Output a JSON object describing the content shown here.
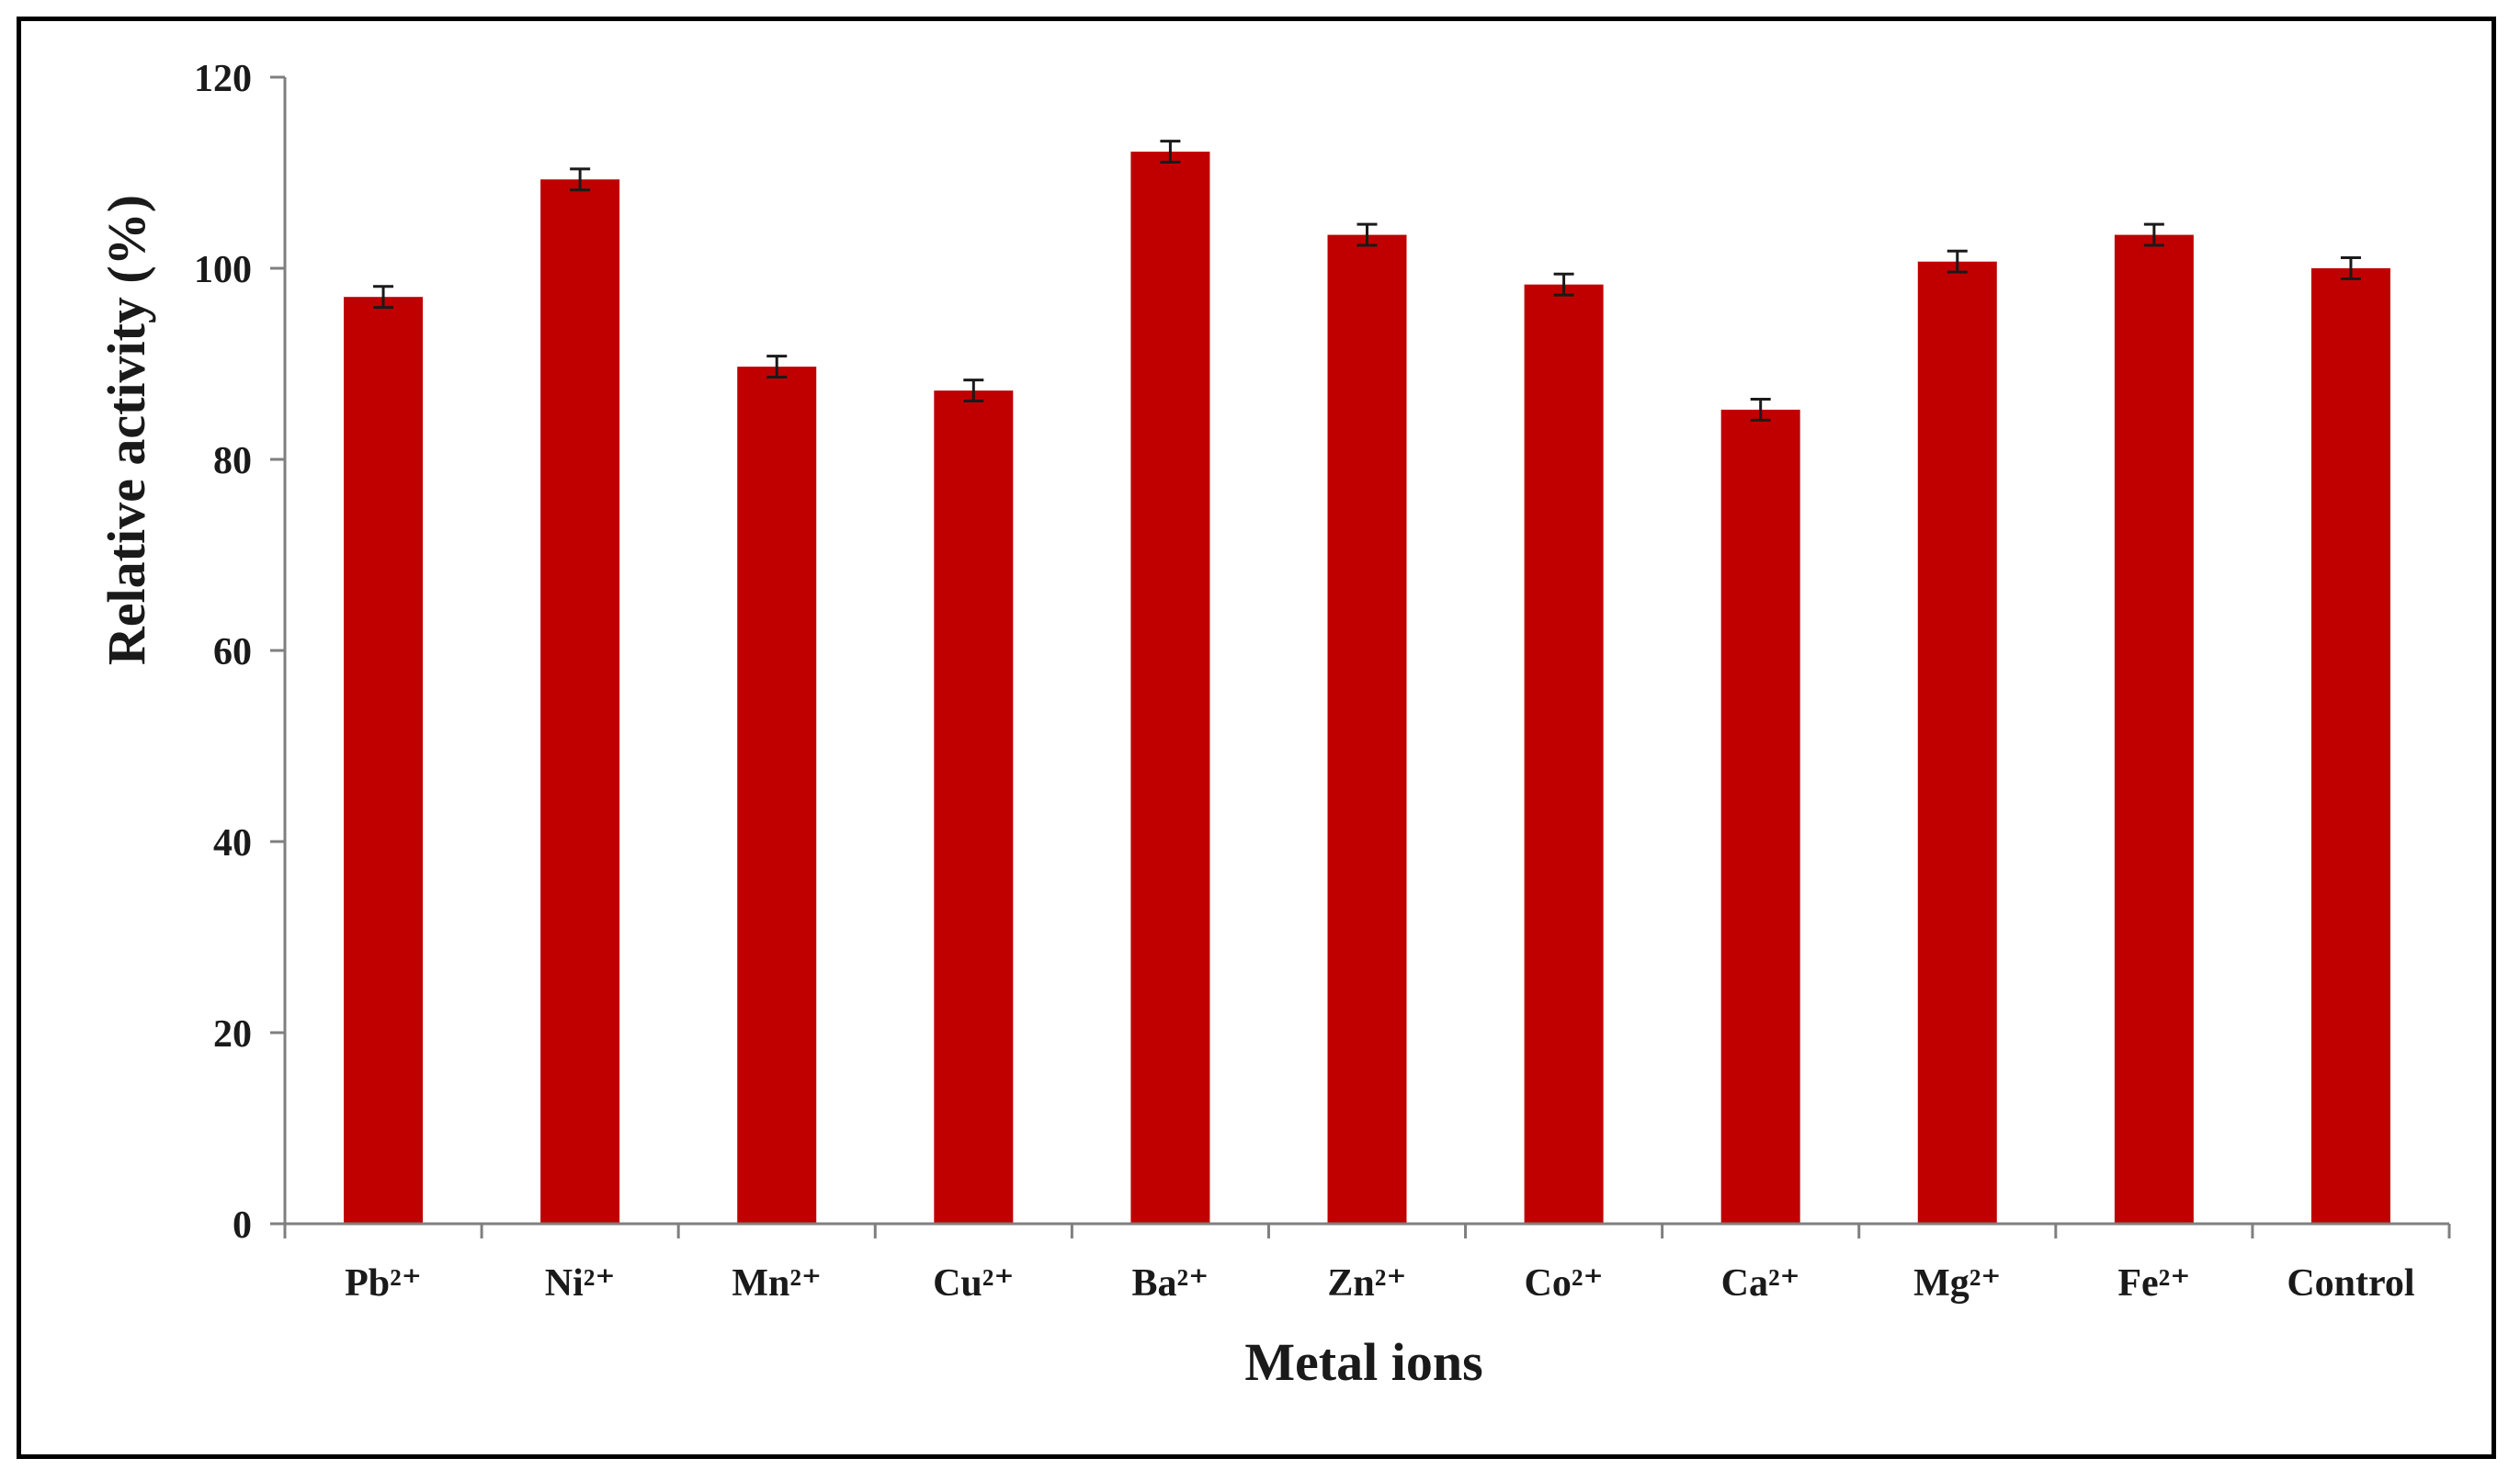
{
  "chart_data": {
    "type": "bar",
    "title": "",
    "xlabel": "Metal ions",
    "ylabel": "Relative activity (%)",
    "ylim": [
      0,
      120
    ],
    "yticks": [
      0,
      20,
      40,
      60,
      80,
      100,
      120
    ],
    "grid": false,
    "legend": "none",
    "bar_color": "#c00000",
    "categories": [
      "Pb²⁺",
      "Ni²⁺",
      "Mn²⁺",
      "Cu²⁺",
      "Ba²⁺",
      "Zn²⁺",
      "Co²⁺",
      "Ca²⁺",
      "Mg²⁺",
      "Fe²⁺",
      "Control"
    ],
    "values": [
      97,
      109.3,
      89.7,
      87.2,
      112.2,
      103.5,
      98.3,
      85.2,
      100.7,
      103.5,
      100
    ],
    "errors": [
      1.1,
      1.1,
      1.1,
      1.1,
      1.1,
      1.1,
      1.1,
      1.1,
      1.1,
      1.1,
      1.1
    ]
  }
}
